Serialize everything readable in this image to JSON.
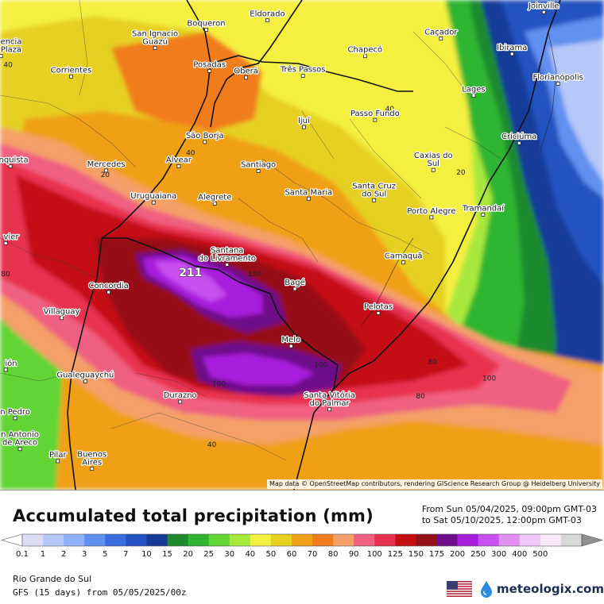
{
  "map": {
    "cities": [
      {
        "name": "Boqueron",
        "lon": -55.97,
        "lat": -26.62
      },
      {
        "name": "Eldorado",
        "lon": -54.68,
        "lat": -26.45
      },
      {
        "name": "Joinville",
        "lon": -48.85,
        "lat": -26.3
      },
      {
        "name": "San Ignacio\nGuazú",
        "lon": -57.05,
        "lat": -26.95
      },
      {
        "name": "Caçador",
        "lon": -51.02,
        "lat": -26.78
      },
      {
        "name": "encia\nPlaza",
        "lon": -60.3,
        "lat": -27.1
      },
      {
        "name": "Chapecó",
        "lon": -52.62,
        "lat": -27.1
      },
      {
        "name": "Ibirama",
        "lon": -49.52,
        "lat": -27.06
      },
      {
        "name": "Corrientes",
        "lon": -58.82,
        "lat": -27.47
      },
      {
        "name": "Posadas",
        "lon": -55.9,
        "lat": -27.37
      },
      {
        "name": "Oberá",
        "lon": -55.13,
        "lat": -27.49
      },
      {
        "name": "Três Passos",
        "lon": -53.93,
        "lat": -27.46
      },
      {
        "name": "Florianópolis",
        "lon": -48.55,
        "lat": -27.6
      },
      {
        "name": "Lages",
        "lon": -50.33,
        "lat": -27.82
      },
      {
        "name": "Passo Fundo",
        "lon": -52.41,
        "lat": -28.26
      },
      {
        "name": "Ijuí",
        "lon": -53.91,
        "lat": -28.39
      },
      {
        "name": "Criciúma",
        "lon": -49.37,
        "lat": -28.68
      },
      {
        "name": "São Borja",
        "lon": -56.0,
        "lat": -28.66
      },
      {
        "name": "Caxias do\nSul",
        "lon": -51.18,
        "lat": -29.17
      },
      {
        "name": "onquista",
        "lon": -60.1,
        "lat": -29.1
      },
      {
        "name": "Mercedes",
        "lon": -58.08,
        "lat": -29.18
      },
      {
        "name": "Alvear",
        "lon": -56.55,
        "lat": -29.1
      },
      {
        "name": "Santiago",
        "lon": -54.87,
        "lat": -29.19
      },
      {
        "name": "Santa Maria",
        "lon": -53.81,
        "lat": -29.69
      },
      {
        "name": "Santa Cruz\ndo Sul",
        "lon": -52.43,
        "lat": -29.72
      },
      {
        "name": "Uruguaiana",
        "lon": -57.08,
        "lat": -29.76
      },
      {
        "name": "Alegrete",
        "lon": -55.79,
        "lat": -29.78
      },
      {
        "name": "Porto Alegre",
        "lon": -51.22,
        "lat": -30.03
      },
      {
        "name": "Tramandaí",
        "lon": -50.13,
        "lat": -29.98
      },
      {
        "name": "vier",
        "lon": -60.2,
        "lat": -30.5
      },
      {
        "name": "Santana\ndo Livramento",
        "lon": -55.53,
        "lat": -30.89
      },
      {
        "name": "Camaquã",
        "lon": -51.81,
        "lat": -30.85
      },
      {
        "name": "Concordia",
        "lon": -58.03,
        "lat": -31.39
      },
      {
        "name": "Bagé",
        "lon": -54.1,
        "lat": -31.33
      },
      {
        "name": "Pelotas",
        "lon": -52.34,
        "lat": -31.77
      },
      {
        "name": "Villaguay",
        "lon": -59.02,
        "lat": -31.86
      },
      {
        "name": "Melo",
        "lon": -54.18,
        "lat": -32.37
      },
      {
        "name": "ión",
        "lon": -60.2,
        "lat": -32.8
      },
      {
        "name": "Gualeguaychú",
        "lon": -58.52,
        "lat": -33.01
      },
      {
        "name": "Santa Vitória\ndo Palmar",
        "lon": -53.37,
        "lat": -33.52
      },
      {
        "name": "Durazno",
        "lon": -56.52,
        "lat": -33.38
      },
      {
        "name": "n Pedro",
        "lon": -60.0,
        "lat": -33.68
      },
      {
        "name": "n Antonio\nde Areco",
        "lon": -59.9,
        "lat": -34.24
      },
      {
        "name": "Pilar",
        "lon": -59.1,
        "lat": -34.46
      },
      {
        "name": "Buenos\nAires",
        "lon": -58.38,
        "lat": -34.6
      }
    ],
    "contour_labels": [
      {
        "text": "40",
        "lon": -60.15,
        "lat": -27.3
      },
      {
        "text": "40",
        "lon": -52.1,
        "lat": -28.1
      },
      {
        "text": "40",
        "lon": -56.3,
        "lat": -28.9
      },
      {
        "text": "20",
        "lon": -58.1,
        "lat": -29.3
      },
      {
        "text": "20",
        "lon": -50.6,
        "lat": -29.25
      },
      {
        "text": "150",
        "lon": -54.95,
        "lat": -31.1
      },
      {
        "text": "80",
        "lon": -60.2,
        "lat": -31.1
      },
      {
        "text": "80",
        "lon": -51.2,
        "lat": -32.7
      },
      {
        "text": "80",
        "lon": -51.45,
        "lat": -33.32
      },
      {
        "text": "100",
        "lon": -50.0,
        "lat": -33.0
      },
      {
        "text": "100",
        "lon": -55.7,
        "lat": -33.1
      },
      {
        "text": "100",
        "lon": -53.55,
        "lat": -32.75
      },
      {
        "text": "40",
        "lon": -55.85,
        "lat": -34.2
      }
    ],
    "max_label": {
      "text": "211",
      "lon": -56.3,
      "lat": -31.1
    },
    "attribution": "Map data © OpenStreetMap contributors, rendering GIScience Research Group @ Heidelberg University"
  },
  "footer": {
    "title": "Accumulated total precipitation (mm)",
    "period_from": "From Sun 05/04/2025, 09:00pm GMT-03",
    "period_to": "to Sat 05/10/2025, 12:00pm GMT-03",
    "region": "Rio Grande do Sul",
    "model": "GFS (15 days) from 05/05/2025/00z",
    "brand": "meteologix.com"
  },
  "legend": {
    "ticks": [
      "0.1",
      "1",
      "2",
      "3",
      "5",
      "7",
      "10",
      "15",
      "20",
      "25",
      "30",
      "40",
      "50",
      "60",
      "70",
      "80",
      "90",
      "100",
      "125",
      "150",
      "175",
      "200",
      "250",
      "300",
      "400",
      "500"
    ],
    "colors": [
      "#dcdcf4",
      "#b6c8f8",
      "#8fb0fa",
      "#6090f0",
      "#3a6ee0",
      "#2452c0",
      "#173a98",
      "#1e8a2e",
      "#2fb532",
      "#62d436",
      "#a8e83c",
      "#f4f040",
      "#e6d020",
      "#f0a018",
      "#f07c1e",
      "#f4a068",
      "#f06080",
      "#e83050",
      "#c40e14",
      "#961018",
      "#6e0e8a",
      "#a81cdc",
      "#c850f0",
      "#e090f2",
      "#f0c8f8",
      "#fce8fc",
      "#d8d8d8"
    ],
    "under_color": "#ffffff",
    "over_color": "#909090"
  }
}
